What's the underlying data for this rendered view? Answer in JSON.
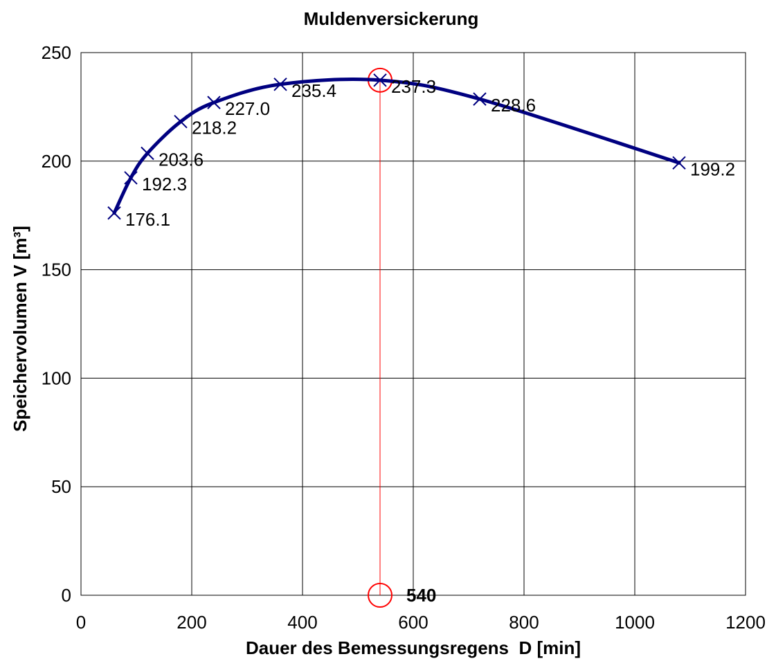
{
  "chart_data": {
    "type": "scatter",
    "title": "Muldenversickerung",
    "xlabel": "Dauer des Bemessungsregens  D [min]",
    "ylabel": "Speichervolumen V [m³]",
    "xlim": [
      0,
      1200
    ],
    "ylim": [
      0,
      250
    ],
    "x_ticks": [
      "0",
      "200",
      "400",
      "600",
      "800",
      "1000",
      "1200"
    ],
    "y_ticks": [
      "0",
      "50",
      "100",
      "150",
      "200",
      "250"
    ],
    "grid": true,
    "smooth_line": true,
    "series": [
      {
        "x": [
          60,
          90,
          120,
          180,
          240,
          360,
          540,
          720,
          1080
        ],
        "y": [
          176.1,
          192.3,
          203.6,
          218.2,
          227.0,
          235.4,
          237.3,
          228.6,
          199.2
        ],
        "labels": [
          "176.1",
          "192.3",
          "203.6",
          "218.2",
          "227.0",
          "235.4",
          "237.3",
          "228.6",
          "199.2"
        ],
        "color": "#000080",
        "marker": "x"
      }
    ],
    "maximum": {
      "x": 540,
      "y": 237.3,
      "x_label": "540",
      "color": "#ff0000"
    }
  }
}
